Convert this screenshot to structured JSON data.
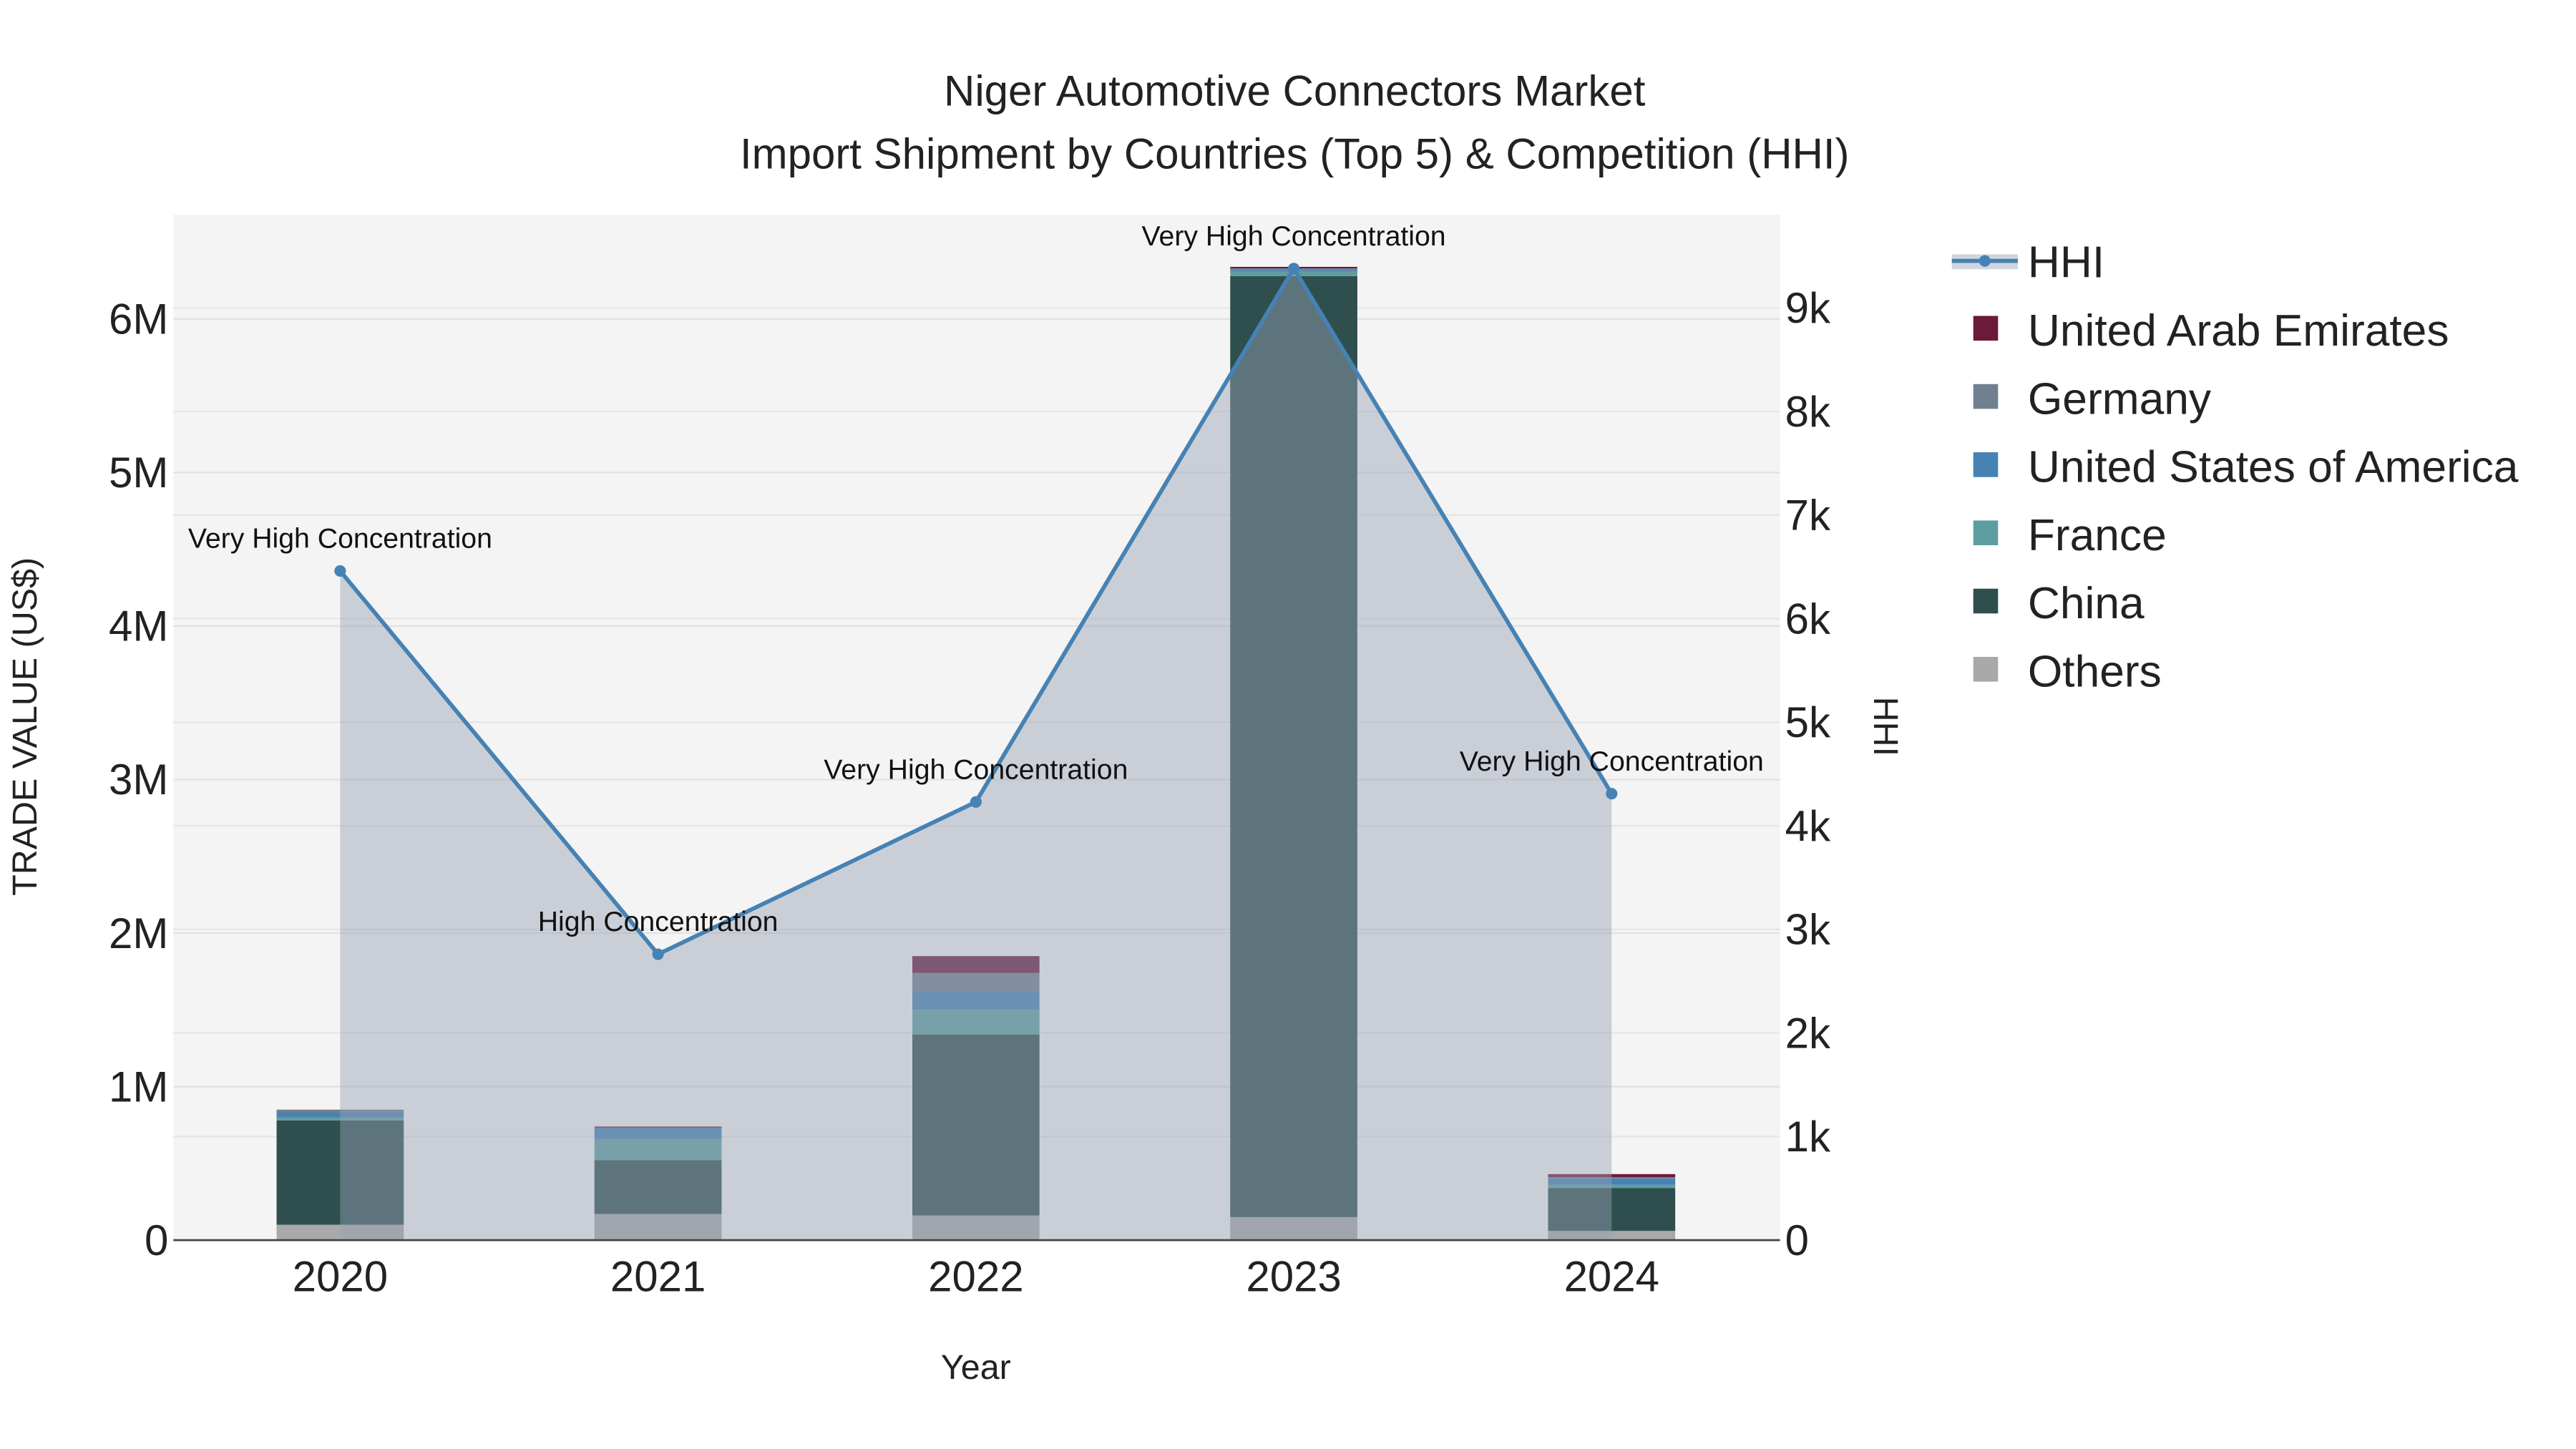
{
  "chart_data": {
    "type": "bar",
    "title_line1": "Niger Automotive Connectors Market",
    "title_line2": "Import Shipment by Countries (Top 5) & Competition (HHI)",
    "xlabel": "Year",
    "ylabel": "TRADE VALUE (US$)",
    "y2label": "HHI",
    "categories": [
      "2020",
      "2021",
      "2022",
      "2023",
      "2024"
    ],
    "ylim": [
      0,
      6680000
    ],
    "y2lim": [
      0,
      9900
    ],
    "yticks": [
      {
        "v": 0,
        "label": "0"
      },
      {
        "v": 1000000,
        "label": "1M"
      },
      {
        "v": 2000000,
        "label": "2M"
      },
      {
        "v": 3000000,
        "label": "3M"
      },
      {
        "v": 4000000,
        "label": "4M"
      },
      {
        "v": 5000000,
        "label": "5M"
      },
      {
        "v": 6000000,
        "label": "6M"
      }
    ],
    "y2ticks": [
      {
        "v": 0,
        "label": "0"
      },
      {
        "v": 1000,
        "label": "1k"
      },
      {
        "v": 2000,
        "label": "2k"
      },
      {
        "v": 3000,
        "label": "3k"
      },
      {
        "v": 4000,
        "label": "4k"
      },
      {
        "v": 5000,
        "label": "5k"
      },
      {
        "v": 6000,
        "label": "6k"
      },
      {
        "v": 7000,
        "label": "7k"
      },
      {
        "v": 8000,
        "label": "8k"
      },
      {
        "v": 9000,
        "label": "9k"
      }
    ],
    "series": [
      {
        "name": "Others",
        "color": "#a9a9a9",
        "values": [
          100000,
          170000,
          160000,
          150000,
          60000
        ]
      },
      {
        "name": "China",
        "color": "#2f4f4f",
        "values": [
          680000,
          350000,
          1180000,
          6130000,
          280000
        ]
      },
      {
        "name": "France",
        "color": "#5f9ea0",
        "values": [
          20000,
          140000,
          160000,
          30000,
          20000
        ]
      },
      {
        "name": "United States of America",
        "color": "#4682b4",
        "values": [
          30000,
          70000,
          120000,
          10000,
          40000
        ]
      },
      {
        "name": "Germany",
        "color": "#708090",
        "values": [
          20000,
          5000,
          120000,
          10000,
          10000
        ]
      },
      {
        "name": "United Arab Emirates",
        "color": "#6b1a3a",
        "values": [
          0,
          5000,
          110000,
          10000,
          20000
        ]
      }
    ],
    "hhi": {
      "name": "HHI",
      "color": "#4682b4",
      "values": [
        6460,
        2760,
        4230,
        9380,
        4310
      ],
      "annotations": [
        "Very High Concentration",
        "High Concentration",
        "Very High Concentration",
        "Very High Concentration",
        "Very High Concentration"
      ]
    },
    "legend_order": [
      "HHI",
      "United Arab Emirates",
      "Germany",
      "United States of America",
      "France",
      "China",
      "Others"
    ],
    "legend_position": "right"
  }
}
